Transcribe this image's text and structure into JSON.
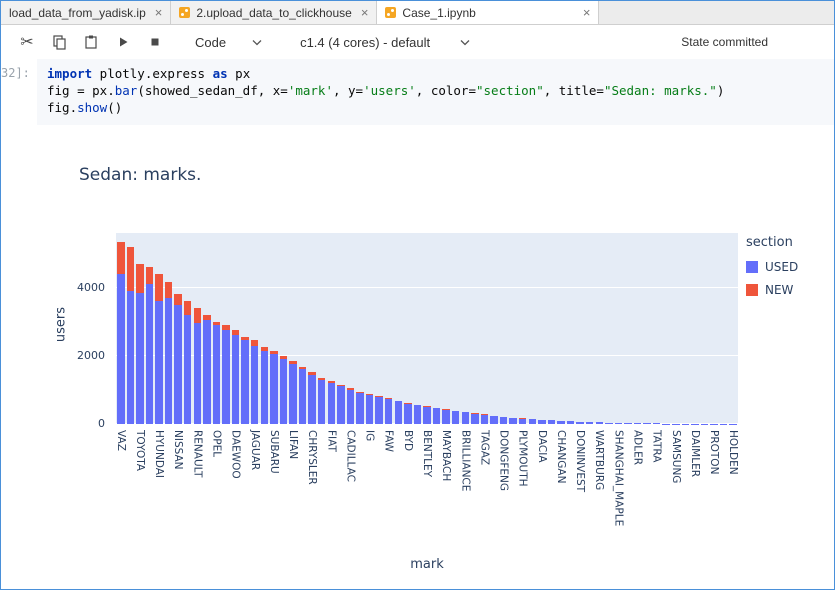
{
  "window": {
    "tabs": [
      {
        "label": "load_data_from_yadisk.ip",
        "close": "×",
        "active": false,
        "icon": null
      },
      {
        "label": "2.upload_data_to_clickhouse",
        "close": "×",
        "active": false,
        "icon": "notebook-orange"
      },
      {
        "label": "Case_1.ipynb",
        "close": "×",
        "active": true,
        "icon": "notebook-orange"
      }
    ]
  },
  "toolbar": {
    "icons": [
      "cut",
      "copy",
      "paste",
      "run",
      "stop"
    ],
    "cut_glyph": "✂",
    "cell_type": "Code",
    "kernel": "c1.4 (4 cores) - default",
    "status": "State committed"
  },
  "cell": {
    "prompt": "32]:",
    "code_lines": [
      [
        {
          "c": "kw",
          "t": "import"
        },
        {
          "c": "pl",
          "t": " plotly.express "
        },
        {
          "c": "kw",
          "t": "as"
        },
        {
          "c": "pl",
          "t": " px"
        }
      ],
      [
        {
          "c": "pl",
          "t": "fig = px."
        },
        {
          "c": "fn",
          "t": "bar"
        },
        {
          "c": "pl",
          "t": "(showed_sedan_df, x="
        },
        {
          "c": "str",
          "t": "'mark'"
        },
        {
          "c": "pl",
          "t": ", y="
        },
        {
          "c": "str",
          "t": "'users'"
        },
        {
          "c": "pl",
          "t": ", color="
        },
        {
          "c": "str",
          "t": "\"section\""
        },
        {
          "c": "pl",
          "t": ", title="
        },
        {
          "c": "str",
          "t": "\"Sedan: marks.\""
        },
        {
          "c": "pl",
          "t": ")"
        }
      ],
      [
        {
          "c": "pl",
          "t": "fig."
        },
        {
          "c": "fn",
          "t": "show"
        },
        {
          "c": "pl",
          "t": "()"
        }
      ]
    ]
  },
  "chart_data": {
    "type": "bar",
    "stacked": true,
    "title": "Sedan: marks.",
    "xlabel": "mark",
    "ylabel": "users",
    "ylim": [
      0,
      5600
    ],
    "yticks": [
      0,
      2000,
      4000
    ],
    "plot_bg": "#e5ecf6",
    "legend": {
      "title": "section",
      "entries": [
        {
          "label": "USED",
          "color": "#636EFA"
        },
        {
          "label": "NEW",
          "color": "#EF553B"
        }
      ]
    },
    "bars": [
      {
        "label": "VAZ",
        "used": 4400,
        "new": 950
      },
      {
        "label": "",
        "used": 3900,
        "new": 1300
      },
      {
        "label": "TOYOTA",
        "used": 3850,
        "new": 850
      },
      {
        "label": "",
        "used": 4100,
        "new": 500
      },
      {
        "label": "HYUNDAI",
        "used": 3600,
        "new": 800
      },
      {
        "label": "",
        "used": 3700,
        "new": 450
      },
      {
        "label": "NISSAN",
        "used": 3500,
        "new": 300
      },
      {
        "label": "",
        "used": 3200,
        "new": 400
      },
      {
        "label": "RENAULT",
        "used": 2950,
        "new": 450
      },
      {
        "label": "",
        "used": 3050,
        "new": 150
      },
      {
        "label": "OPEL",
        "used": 2900,
        "new": 100
      },
      {
        "label": "",
        "used": 2750,
        "new": 150
      },
      {
        "label": "DAEWOO",
        "used": 2600,
        "new": 150
      },
      {
        "label": "",
        "used": 2450,
        "new": 100
      },
      {
        "label": "JAGUAR",
        "used": 2300,
        "new": 150
      },
      {
        "label": "",
        "used": 2150,
        "new": 100
      },
      {
        "label": "SUBARU",
        "used": 2050,
        "new": 100
      },
      {
        "label": "",
        "used": 1900,
        "new": 100
      },
      {
        "label": "LIFAN",
        "used": 1750,
        "new": 100
      },
      {
        "label": "",
        "used": 1600,
        "new": 80
      },
      {
        "label": "CHRYSLER",
        "used": 1450,
        "new": 80
      },
      {
        "label": "",
        "used": 1300,
        "new": 60
      },
      {
        "label": "FIAT",
        "used": 1200,
        "new": 60
      },
      {
        "label": "",
        "used": 1100,
        "new": 50
      },
      {
        "label": "CADILLAC",
        "used": 1000,
        "new": 50
      },
      {
        "label": "",
        "used": 900,
        "new": 40
      },
      {
        "label": "IG",
        "used": 850,
        "new": 30
      },
      {
        "label": "",
        "used": 780,
        "new": 30
      },
      {
        "label": "FAW",
        "used": 720,
        "new": 30
      },
      {
        "label": "",
        "used": 660,
        "new": 25
      },
      {
        "label": "BYD",
        "used": 600,
        "new": 25
      },
      {
        "label": "",
        "used": 550,
        "new": 20
      },
      {
        "label": "BENTLEY",
        "used": 500,
        "new": 20
      },
      {
        "label": "",
        "used": 460,
        "new": 15
      },
      {
        "label": "MAYBACH",
        "used": 420,
        "new": 15
      },
      {
        "label": "",
        "used": 380,
        "new": 12
      },
      {
        "label": "BRILLIANCE",
        "used": 340,
        "new": 12
      },
      {
        "label": "",
        "used": 300,
        "new": 10
      },
      {
        "label": "TAGAZ",
        "used": 270,
        "new": 10
      },
      {
        "label": "",
        "used": 240,
        "new": 8
      },
      {
        "label": "DONGFENG",
        "used": 210,
        "new": 8
      },
      {
        "label": "",
        "used": 185,
        "new": 6
      },
      {
        "label": "PLYMOUTH",
        "used": 160,
        "new": 30
      },
      {
        "label": "",
        "used": 140,
        "new": 5
      },
      {
        "label": "DACIA",
        "used": 120,
        "new": 5
      },
      {
        "label": "",
        "used": 105,
        "new": 4
      },
      {
        "label": "CHANGAN",
        "used": 90,
        "new": 4
      },
      {
        "label": "",
        "used": 78,
        "new": 3
      },
      {
        "label": "DONINVEST",
        "used": 66,
        "new": 3
      },
      {
        "label": "",
        "used": 56,
        "new": 2
      },
      {
        "label": "WARTBURG",
        "used": 48,
        "new": 2
      },
      {
        "label": "",
        "used": 40,
        "new": 2
      },
      {
        "label": "SHANGHAI_MAPLE",
        "used": 34,
        "new": 1
      },
      {
        "label": "",
        "used": 28,
        "new": 1
      },
      {
        "label": "ADLER",
        "used": 24,
        "new": 1
      },
      {
        "label": "",
        "used": 20,
        "new": 1
      },
      {
        "label": "TATRA",
        "used": 16,
        "new": 1
      },
      {
        "label": "",
        "used": 13,
        "new": 0
      },
      {
        "label": "SAMSUNG",
        "used": 11,
        "new": 0
      },
      {
        "label": "",
        "used": 9,
        "new": 0
      },
      {
        "label": "DAIMLER",
        "used": 7,
        "new": 0
      },
      {
        "label": "",
        "used": 6,
        "new": 0
      },
      {
        "label": "PROTON",
        "used": 5,
        "new": 0
      },
      {
        "label": "",
        "used": 4,
        "new": 0
      },
      {
        "label": "HOLDEN",
        "used": 3,
        "new": 0
      }
    ]
  }
}
